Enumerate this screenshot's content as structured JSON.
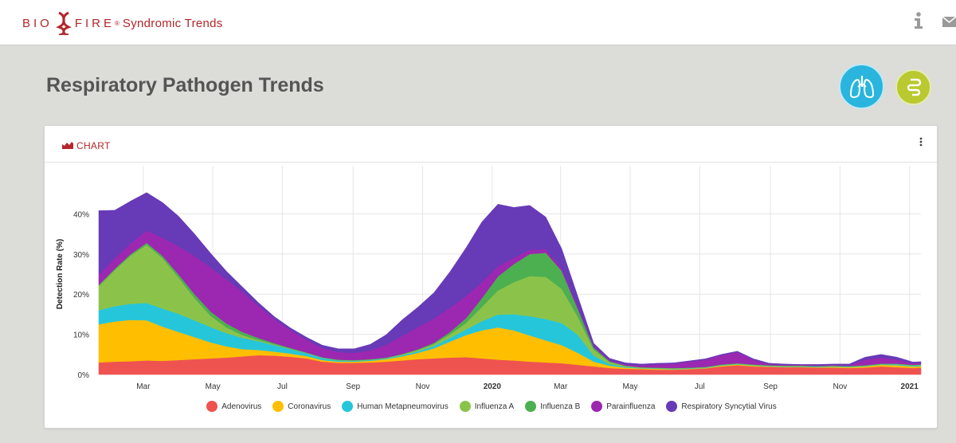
{
  "header": {
    "logo_left": "BIO",
    "logo_right": "FIRE",
    "logo_reg": "®",
    "logo_sub": "Syndromic Trends",
    "info_icon": "info-icon",
    "mail_icon": "mail-icon"
  },
  "page": {
    "title": "Respiratory Pathogen Trends"
  },
  "panel_buttons": [
    {
      "name": "respiratory-panel-button",
      "icon": "lungs-icon",
      "color": "#29b5dd"
    },
    {
      "name": "gastrointestinal-panel-button",
      "icon": "intestine-icon",
      "color": "#b9c92f"
    }
  ],
  "card": {
    "title": "CHART",
    "icon": "area-chart-icon",
    "menu_icon": "more-vert-icon"
  },
  "chart_data": {
    "type": "area",
    "stacked": true,
    "ylabel": "Detection Rate (%)",
    "yticks": [
      "0%",
      "10%",
      "20%",
      "30%",
      "40%"
    ],
    "ylim": [
      0,
      50
    ],
    "xrange": [
      "2019-01-21",
      "2021-01-11"
    ],
    "xticks": [
      {
        "date": "2019-03-01",
        "label": "Mar",
        "bold": false
      },
      {
        "date": "2019-05-01",
        "label": "May",
        "bold": false
      },
      {
        "date": "2019-07-01",
        "label": "Jul",
        "bold": false
      },
      {
        "date": "2019-09-01",
        "label": "Sep",
        "bold": false
      },
      {
        "date": "2019-11-01",
        "label": "Nov",
        "bold": false
      },
      {
        "date": "2020-01-01",
        "label": "2020",
        "bold": true
      },
      {
        "date": "2020-03-01",
        "label": "Mar",
        "bold": false
      },
      {
        "date": "2020-05-01",
        "label": "May",
        "bold": false
      },
      {
        "date": "2020-07-01",
        "label": "Jul",
        "bold": false
      },
      {
        "date": "2020-09-01",
        "label": "Sep",
        "bold": false
      },
      {
        "date": "2020-11-01",
        "label": "Nov",
        "bold": false
      },
      {
        "date": "2021-01-01",
        "label": "2021",
        "bold": true
      }
    ],
    "x": [
      "2019-01-21",
      "2019-02-04",
      "2019-02-18",
      "2019-03-04",
      "2019-03-18",
      "2019-04-01",
      "2019-04-15",
      "2019-04-29",
      "2019-05-13",
      "2019-05-27",
      "2019-06-10",
      "2019-06-24",
      "2019-07-08",
      "2019-07-22",
      "2019-08-05",
      "2019-08-19",
      "2019-09-02",
      "2019-09-16",
      "2019-09-30",
      "2019-10-14",
      "2019-10-28",
      "2019-11-11",
      "2019-11-25",
      "2019-12-09",
      "2019-12-23",
      "2020-01-06",
      "2020-01-20",
      "2020-02-03",
      "2020-02-17",
      "2020-03-02",
      "2020-03-16",
      "2020-03-30",
      "2020-04-13",
      "2020-04-27",
      "2020-05-11",
      "2020-05-25",
      "2020-06-08",
      "2020-06-22",
      "2020-07-06",
      "2020-07-20",
      "2020-08-03",
      "2020-08-17",
      "2020-08-31",
      "2020-09-14",
      "2020-09-28",
      "2020-10-12",
      "2020-10-26",
      "2020-11-09",
      "2020-11-23",
      "2020-12-07",
      "2020-12-21",
      "2021-01-04",
      "2021-01-11"
    ],
    "series": [
      {
        "name": "Adenovirus",
        "color": "#ef5350",
        "values": [
          3.0,
          3.2,
          3.3,
          3.5,
          3.4,
          3.6,
          3.8,
          4.0,
          4.2,
          4.5,
          4.8,
          4.7,
          4.4,
          4.0,
          3.2,
          2.9,
          2.9,
          3.0,
          3.2,
          3.5,
          3.8,
          4.0,
          4.2,
          4.3,
          4.0,
          3.7,
          3.5,
          3.2,
          3.0,
          2.8,
          2.4,
          2.0,
          1.6,
          1.4,
          1.3,
          1.2,
          1.2,
          1.3,
          1.5,
          2.0,
          2.3,
          2.0,
          1.9,
          1.8,
          1.8,
          1.7,
          1.7,
          1.6,
          1.7,
          2.0,
          1.8,
          1.6,
          1.7
        ]
      },
      {
        "name": "Coronavirus",
        "color": "#ffbf00",
        "values": [
          9.5,
          10.0,
          10.3,
          10.0,
          8.5,
          7.0,
          5.5,
          4.0,
          2.8,
          1.8,
          1.3,
          1.0,
          0.8,
          0.6,
          0.4,
          0.3,
          0.3,
          0.4,
          0.6,
          1.0,
          1.6,
          2.5,
          4.0,
          5.5,
          7.0,
          8.0,
          7.5,
          6.5,
          5.5,
          4.5,
          3.0,
          1.2,
          0.6,
          0.3,
          0.2,
          0.2,
          0.1,
          0.1,
          0.1,
          0.2,
          0.2,
          0.2,
          0.1,
          0.1,
          0.1,
          0.1,
          0.2,
          0.2,
          0.3,
          0.4,
          0.5,
          0.4,
          0.4
        ]
      },
      {
        "name": "Human Metapneumovirus",
        "color": "#26c6da",
        "values": [
          3.5,
          3.8,
          4.0,
          4.3,
          4.5,
          4.5,
          4.2,
          3.8,
          3.3,
          2.8,
          2.2,
          1.6,
          1.1,
          0.7,
          0.5,
          0.3,
          0.2,
          0.2,
          0.2,
          0.3,
          0.4,
          0.6,
          0.9,
          1.4,
          2.3,
          3.2,
          4.0,
          4.8,
          5.3,
          5.5,
          4.5,
          1.5,
          0.4,
          0.2,
          0.1,
          0.1,
          0.1,
          0.1,
          0.1,
          0.1,
          0.1,
          0.1,
          0.1,
          0.1,
          0.1,
          0.1,
          0.1,
          0.1,
          0.1,
          0.1,
          0.2,
          0.2,
          0.2
        ]
      },
      {
        "name": "Influenza A",
        "color": "#8bc34a",
        "values": [
          6.0,
          9.0,
          12.0,
          14.5,
          12.5,
          9.0,
          5.5,
          2.8,
          1.4,
          0.7,
          0.3,
          0.2,
          0.1,
          0.1,
          0.1,
          0.1,
          0.1,
          0.1,
          0.1,
          0.2,
          0.3,
          0.5,
          0.9,
          1.6,
          3.5,
          6.0,
          8.0,
          10.0,
          10.5,
          8.5,
          4.5,
          1.5,
          0.5,
          0.2,
          0.1,
          0.1,
          0.1,
          0.1,
          0.1,
          0.1,
          0.1,
          0.1,
          0.1,
          0.1,
          0.1,
          0.1,
          0.1,
          0.1,
          0.1,
          0.1,
          0.1,
          0.1,
          0.1
        ]
      },
      {
        "name": "Influenza B",
        "color": "#4caf50",
        "values": [
          0.3,
          0.3,
          0.4,
          0.5,
          0.6,
          0.8,
          1.0,
          1.1,
          1.0,
          0.8,
          0.5,
          0.3,
          0.2,
          0.1,
          0.1,
          0.1,
          0.1,
          0.1,
          0.1,
          0.1,
          0.2,
          0.3,
          0.6,
          1.2,
          2.2,
          3.5,
          4.5,
          5.5,
          6.0,
          4.5,
          2.0,
          0.5,
          0.2,
          0.1,
          0.1,
          0.1,
          0.1,
          0.1,
          0.1,
          0.1,
          0.1,
          0.1,
          0.1,
          0.1,
          0.1,
          0.1,
          0.1,
          0.1,
          0.1,
          0.1,
          0.1,
          0.1,
          0.1
        ]
      },
      {
        "name": "Parainfluenza",
        "color": "#9c27b0",
        "values": [
          2.5,
          2.6,
          2.7,
          3.0,
          4.5,
          7.0,
          9.5,
          11.0,
          11.0,
          10.0,
          8.0,
          6.0,
          4.5,
          3.2,
          2.3,
          1.9,
          1.8,
          2.2,
          3.2,
          4.5,
          5.5,
          6.0,
          6.0,
          5.5,
          4.0,
          2.5,
          1.6,
          1.1,
          0.9,
          0.7,
          0.6,
          0.3,
          0.2,
          0.3,
          0.5,
          0.8,
          1.1,
          1.5,
          1.8,
          2.3,
          2.8,
          1.2,
          0.3,
          0.2,
          0.2,
          0.2,
          0.2,
          0.2,
          1.4,
          1.5,
          1.0,
          0.4,
          0.4
        ]
      },
      {
        "name": "Respiratory Syncytial Virus",
        "color": "#673ab7",
        "values": [
          16.0,
          12.0,
          10.5,
          9.5,
          8.8,
          7.5,
          5.5,
          3.5,
          2.0,
          1.2,
          0.8,
          0.6,
          0.5,
          0.6,
          0.7,
          0.8,
          1.0,
          1.5,
          2.5,
          4.0,
          5.0,
          6.5,
          9.0,
          12.0,
          15.0,
          15.5,
          12.5,
          11.0,
          8.0,
          4.8,
          2.5,
          0.8,
          0.5,
          0.4,
          0.3,
          0.3,
          0.2,
          0.2,
          0.2,
          0.2,
          0.2,
          0.2,
          0.2,
          0.2,
          0.1,
          0.2,
          0.2,
          0.3,
          0.6,
          0.8,
          0.6,
          0.3,
          0.3
        ]
      }
    ]
  }
}
